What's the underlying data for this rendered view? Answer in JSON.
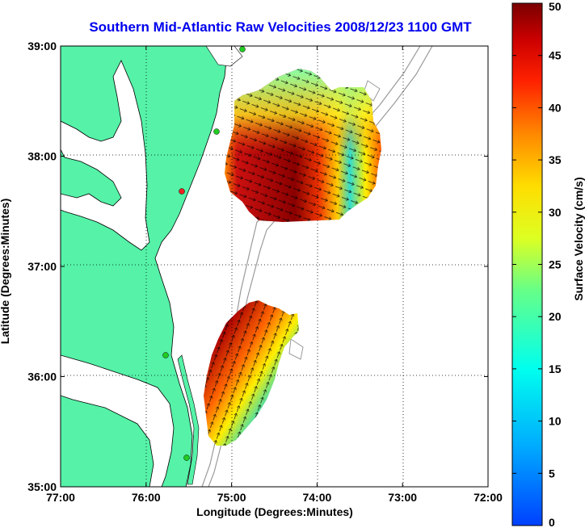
{
  "title": "Southern Mid-Atlantic Raw Velocities 2008/12/23 1100 GMT",
  "axes": {
    "xlabel": "Longitude (Degrees:Minutes)",
    "ylabel": "Latitude (Degrees:Minutes)",
    "x_ticks": [
      "77:00",
      "76:00",
      "75:00",
      "74:00",
      "73:00",
      "72:00"
    ],
    "y_ticks": [
      "39:00",
      "38:00",
      "37:00",
      "36:00",
      "35:00"
    ]
  },
  "colorbar": {
    "label": "Surface Velocity (cm/s)",
    "ticks": [
      "50",
      "45",
      "40",
      "35",
      "30",
      "25",
      "20",
      "15",
      "10",
      "5",
      "0"
    ],
    "range": [
      0,
      50
    ]
  },
  "colors": {
    "land": "#55f2a8",
    "title": "#0000ee",
    "contour": "#9a9a9a",
    "station": "#22cc22"
  }
}
